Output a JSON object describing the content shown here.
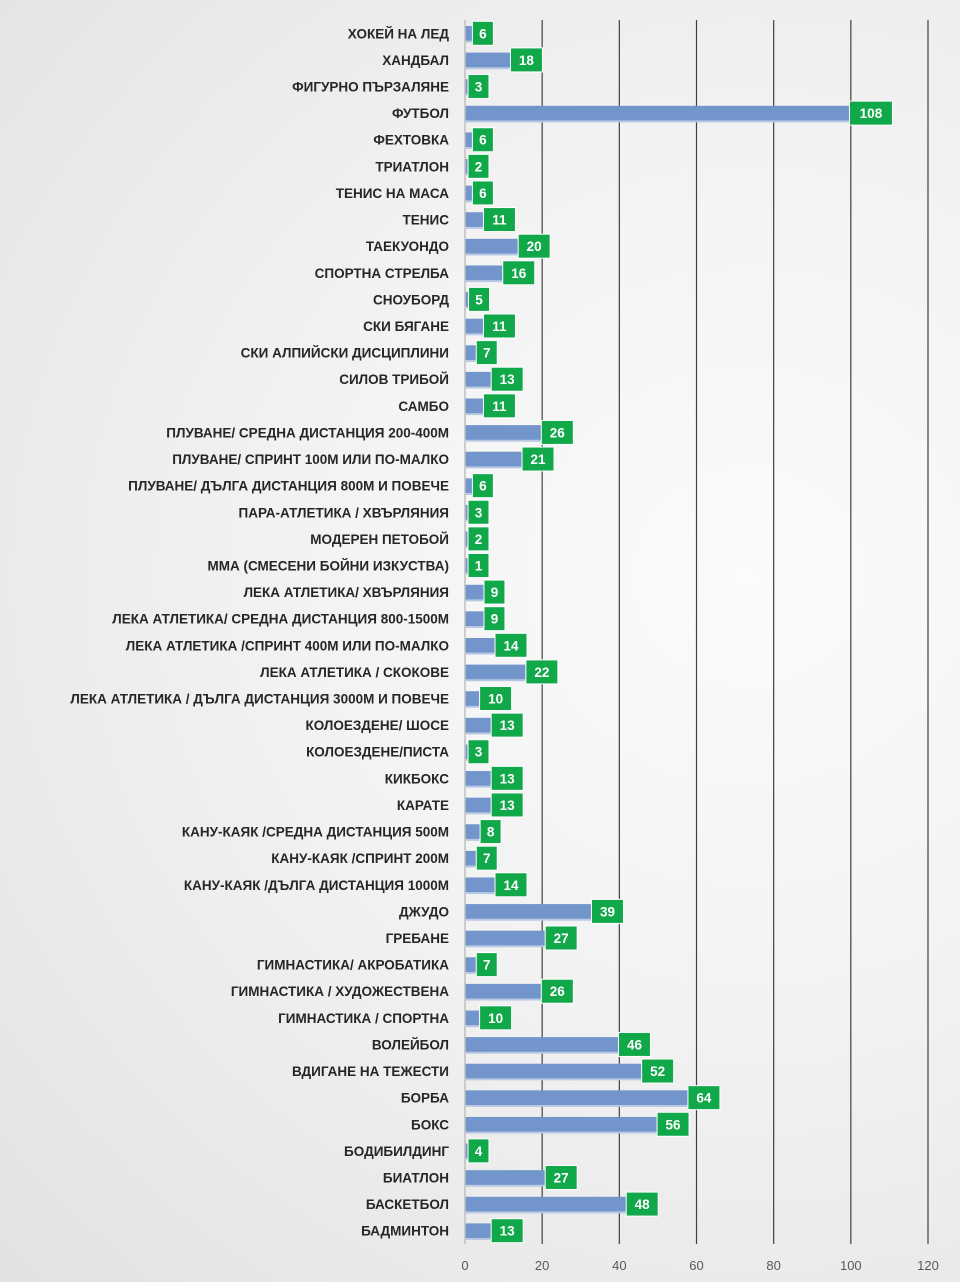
{
  "chart_data": {
    "type": "bar",
    "orientation": "horizontal",
    "categories": [
      "ХОКЕЙ НА ЛЕД",
      "ХАНДБАЛ",
      "ФИГУРНО ПЪРЗАЛЯНЕ",
      "ФУТБОЛ",
      "ФЕХТОВКА",
      "ТРИАТЛОН",
      "ТЕНИС НА МАСА",
      "ТЕНИС",
      "ТАЕКУОНДО",
      "СПОРТНА СТРЕЛБА",
      "СНОУБОРД",
      "СКИ БЯГАНЕ",
      "СКИ АЛПИЙСКИ ДИСЦИПЛИНИ",
      "СИЛОВ ТРИБОЙ",
      "САМБО",
      "ПЛУВАНЕ/ СРЕДНА ДИСТАНЦИЯ 200-400М",
      "ПЛУВАНЕ/ СПРИНТ 100М ИЛИ ПО-МАЛКО",
      "ПЛУВАНЕ/ ДЪЛГА ДИСТАНЦИЯ 800М И ПОВЕЧЕ",
      "ПАРА-АТЛЕТИКА / ХВЪРЛЯНИЯ",
      "МОДЕРЕН ПЕТОБОЙ",
      "ММА (СМЕСЕНИ БОЙНИ ИЗКУСТВА)",
      "ЛЕКА АТЛЕТИКА/ ХВЪРЛЯНИЯ",
      "ЛЕКА АТЛЕТИКА/ СРЕДНА ДИСТАНЦИЯ 800-1500М",
      "ЛЕКА АТЛЕТИКА /СПРИНТ 400М ИЛИ ПО-МАЛКО",
      "ЛЕКА АТЛЕТИКА / СКОКОВЕ",
      "ЛЕКА АТЛЕТИКА / ДЪЛГА ДИСТАНЦИЯ 3000М И ПОВЕЧЕ",
      "КОЛОЕЗДЕНЕ/ ШОСЕ",
      "КОЛОЕЗДЕНЕ/ПИСТА",
      "КИКБОКС",
      "КАРАТЕ",
      "КАНУ-КАЯК /СРЕДНА ДИСТАНЦИЯ 500М",
      "КАНУ-КАЯК /СПРИНТ 200М",
      "КАНУ-КАЯК /ДЪЛГА ДИСТАНЦИЯ 1000М",
      "ДЖУДО",
      "ГРЕБАНЕ",
      "ГИМНАСТИКА/ АКРОБАТИКА",
      "ГИМНАСТИКА / ХУДОЖЕСТВЕНА",
      "ГИМНАСТИКА / СПОРТНА",
      "ВОЛЕЙБОЛ",
      "ВДИГАНЕ НА ТЕЖЕСТИ",
      "БОРБА",
      "БОКС",
      "БОДИБИЛДИНГ",
      "БИАТЛОН",
      "БАСКЕТБОЛ",
      "БАДМИНТОН"
    ],
    "values": [
      6,
      18,
      3,
      108,
      6,
      2,
      6,
      11,
      20,
      16,
      5,
      11,
      7,
      13,
      11,
      26,
      21,
      6,
      3,
      2,
      1,
      9,
      9,
      14,
      22,
      10,
      13,
      3,
      13,
      13,
      8,
      7,
      14,
      39,
      27,
      7,
      26,
      10,
      46,
      52,
      64,
      56,
      4,
      27,
      48,
      13
    ],
    "xlim": [
      0,
      120
    ],
    "xticks": [
      "0",
      "20",
      "40",
      "60",
      "80",
      "100",
      "120"
    ],
    "title": "",
    "xlabel": "",
    "ylabel": "",
    "grid": "vertical",
    "legend": "none",
    "bar_color": "#7295cc",
    "label_color": "#11a84a"
  }
}
